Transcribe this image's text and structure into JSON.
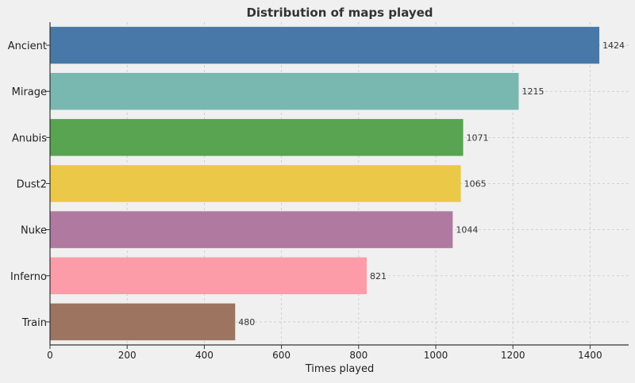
{
  "chart_data": {
    "type": "bar",
    "orientation": "horizontal",
    "title": "Distribution of maps played",
    "xlabel": "Times played",
    "ylabel": "",
    "categories": [
      "Ancient",
      "Mirage",
      "Anubis",
      "Dust2",
      "Nuke",
      "Inferno",
      "Train"
    ],
    "values": [
      1424,
      1215,
      1071,
      1065,
      1044,
      821,
      480
    ],
    "colors": [
      "#4878a8",
      "#78b8b0",
      "#58a450",
      "#ecc848",
      "#b07aa0",
      "#fc9ca8",
      "#9c7460"
    ],
    "data_labels": [
      "1424",
      "1215",
      "1071",
      "1065",
      "1044",
      "821",
      "480"
    ],
    "xlim": [
      0,
      1500
    ],
    "xticks": [
      0,
      200,
      400,
      600,
      800,
      1000,
      1200,
      1400
    ],
    "xtick_labels": [
      "0",
      "200",
      "400",
      "600",
      "800",
      "1000",
      "1200",
      "1400"
    ],
    "grid": true,
    "background": "#f0f0f0"
  }
}
